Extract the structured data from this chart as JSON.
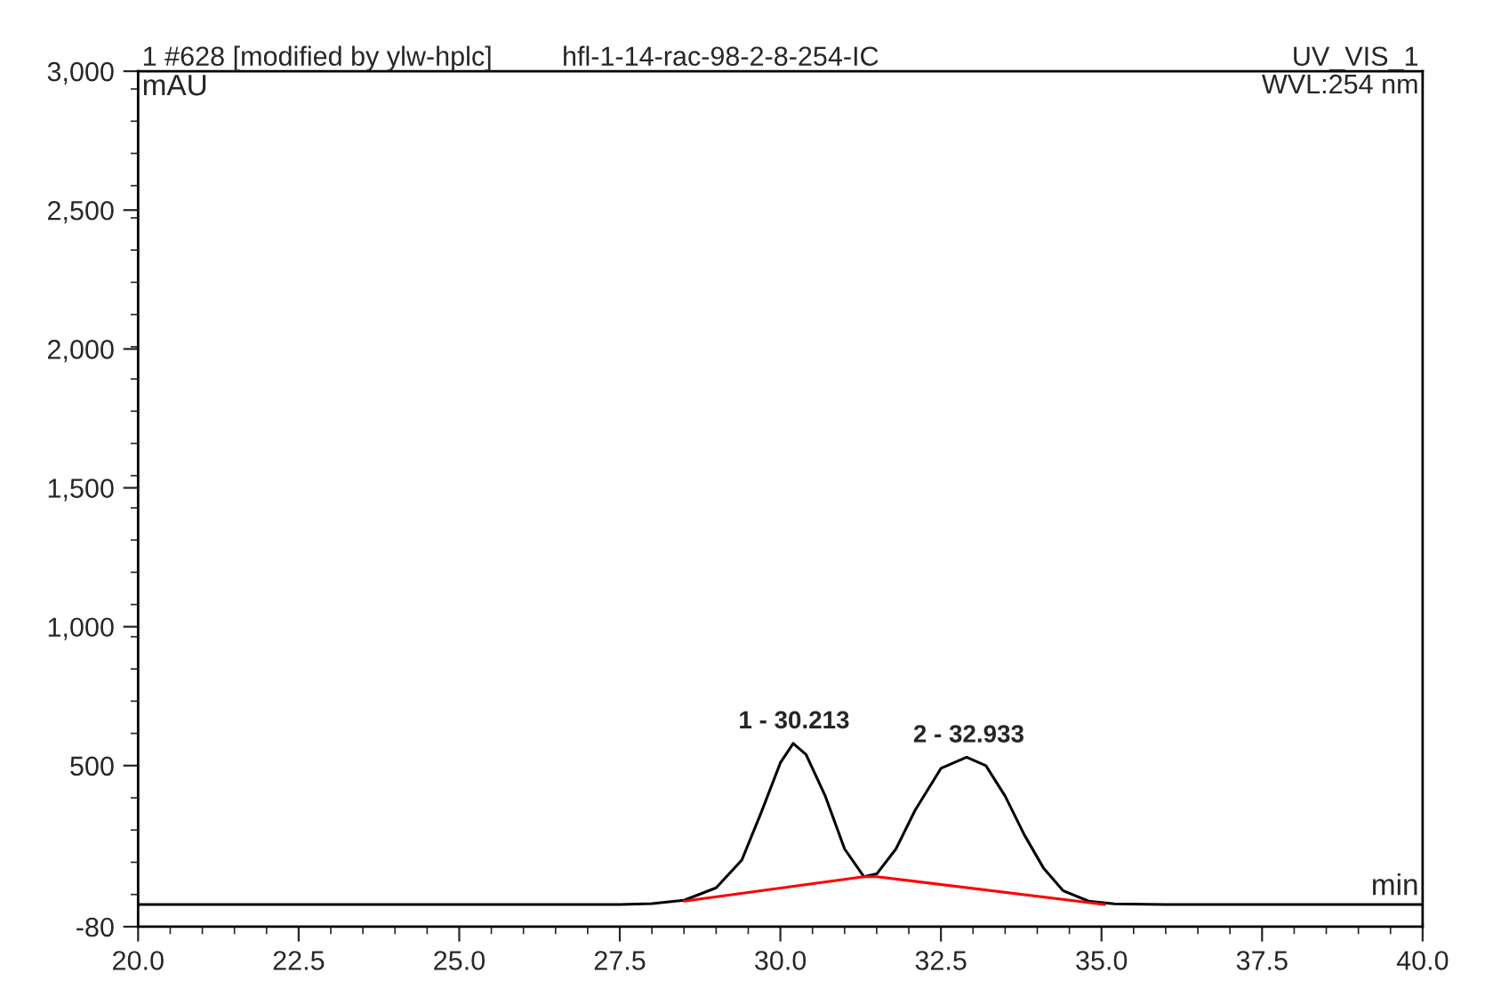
{
  "chart_data": {
    "type": "line",
    "xlabel": "min",
    "ylabel": "mAU",
    "annotations": [
      {
        "text": "1 - 30.213",
        "x": 30.213,
        "y": 580
      },
      {
        "text": "2 - 32.933",
        "x": 32.933,
        "y": 530
      },
      "1 #628 [modified by ylw-hplc]",
      "hfl-1-14-rac-98-2-8-254-IC",
      "UV_VIS_1",
      "WVL:254 nm"
    ],
    "series": [
      {
        "color": "#000000",
        "x": [
          20,
          27.5,
          28.0,
          28.5,
          29.0,
          29.4,
          29.7,
          30.0,
          30.2,
          30.4,
          30.7,
          31.0,
          31.3,
          31.5,
          31.8,
          32.1,
          32.5,
          32.9,
          33.2,
          33.5,
          33.8,
          34.1,
          34.4,
          34.8,
          35.2,
          36,
          40
        ],
        "values": [
          0,
          0,
          3,
          15,
          60,
          160,
          330,
          510,
          580,
          540,
          390,
          200,
          100,
          110,
          200,
          340,
          490,
          530,
          500,
          390,
          250,
          130,
          50,
          12,
          2,
          0,
          0
        ]
      },
      {
        "color": "#ff0000",
        "x": [
          28.5,
          31.3,
          31.5,
          35.05
        ],
        "values": [
          12,
          100,
          100,
          0
        ]
      }
    ],
    "xlim": [
      20,
      40
    ],
    "xticks": [
      {
        "value": 20,
        "label": "20.0"
      },
      {
        "value": 22.5,
        "label": "22.5"
      },
      {
        "value": 25,
        "label": "25.0"
      },
      {
        "value": 27.5,
        "label": "27.5"
      },
      {
        "value": 30,
        "label": "30.0"
      },
      {
        "value": 32.5,
        "label": "32.5"
      },
      {
        "value": 35,
        "label": "35.0"
      },
      {
        "value": 37.5,
        "label": "37.5"
      },
      {
        "value": 40,
        "label": "40.0"
      }
    ],
    "ylim": [
      -80,
      3000
    ],
    "yticks": [
      -80,
      500,
      {
        "value": 1000,
        "label": "1,000"
      },
      {
        "value": 1500,
        "label": "1,500"
      },
      {
        "value": 2000,
        "label": "2,000"
      },
      {
        "value": 2500,
        "label": "2,500"
      },
      {
        "value": 3000,
        "label": "3,000"
      }
    ],
    "grid": false,
    "legend": false,
    "line_style": "solid",
    "marker": "none"
  }
}
